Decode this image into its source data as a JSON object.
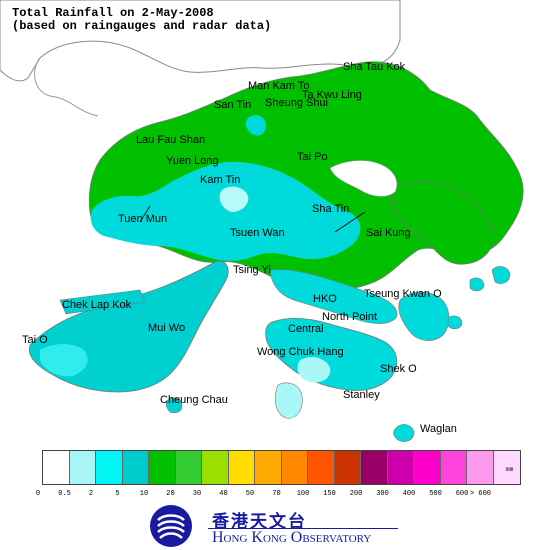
{
  "title": {
    "line1": "Total Rainfall on 2-May-2008",
    "line2": "(based on raingauges and radar data)"
  },
  "places": [
    {
      "name": "Sha Tau Kok"
    },
    {
      "name": "Man Kam To"
    },
    {
      "name": "Ta Kwu Ling"
    },
    {
      "name": "San Tin"
    },
    {
      "name": "Sheung Shui"
    },
    {
      "name": "Lau Fau Shan"
    },
    {
      "name": "Yuen Long"
    },
    {
      "name": "Tai Po"
    },
    {
      "name": "Kam Tin"
    },
    {
      "name": "Tuen Mun"
    },
    {
      "name": "Sha Tin"
    },
    {
      "name": "Tsuen Wan"
    },
    {
      "name": "Sai Kung"
    },
    {
      "name": "Tsing Yi"
    },
    {
      "name": "Chek Lap Kok"
    },
    {
      "name": "HKO"
    },
    {
      "name": "Tseung Kwan O"
    },
    {
      "name": "North Point"
    },
    {
      "name": "Mui Wo"
    },
    {
      "name": "Central"
    },
    {
      "name": "Tai O"
    },
    {
      "name": "Wong Chuk Hang"
    },
    {
      "name": "Shek O"
    },
    {
      "name": "Cheung Chau"
    },
    {
      "name": "Stanley"
    },
    {
      "name": "Waglan"
    }
  ],
  "legend": {
    "unit": "mm",
    "colors": [
      "#ffffff",
      "#a8f5f5",
      "#00f5f5",
      "#00cccc",
      "#00c000",
      "#33cc33",
      "#99e000",
      "#ffdd00",
      "#ffaa00",
      "#ff8800",
      "#ff5500",
      "#cc3300",
      "#990066",
      "#cc00aa",
      "#ff00cc",
      "#ff44dd",
      "#ff99ee",
      "#ffd8ff"
    ],
    "tick_labels": [
      "0",
      "0.5",
      "2",
      "5",
      "10",
      "20",
      "30",
      "40",
      "50",
      "70",
      "100",
      "150",
      "200",
      "300",
      "400",
      "500",
      "600",
      "> 600"
    ]
  },
  "colors": {
    "land_base": "#00c8c8",
    "heavy_rain": "#00c000",
    "medium_rain": "#00e0e0",
    "light_rain": "#b0f8f8",
    "mainland": "#ffffff",
    "logo_blue": "#1a1aa0"
  },
  "logo": {
    "chinese": "香港天文台",
    "english": "Hong Kong Observatory"
  }
}
